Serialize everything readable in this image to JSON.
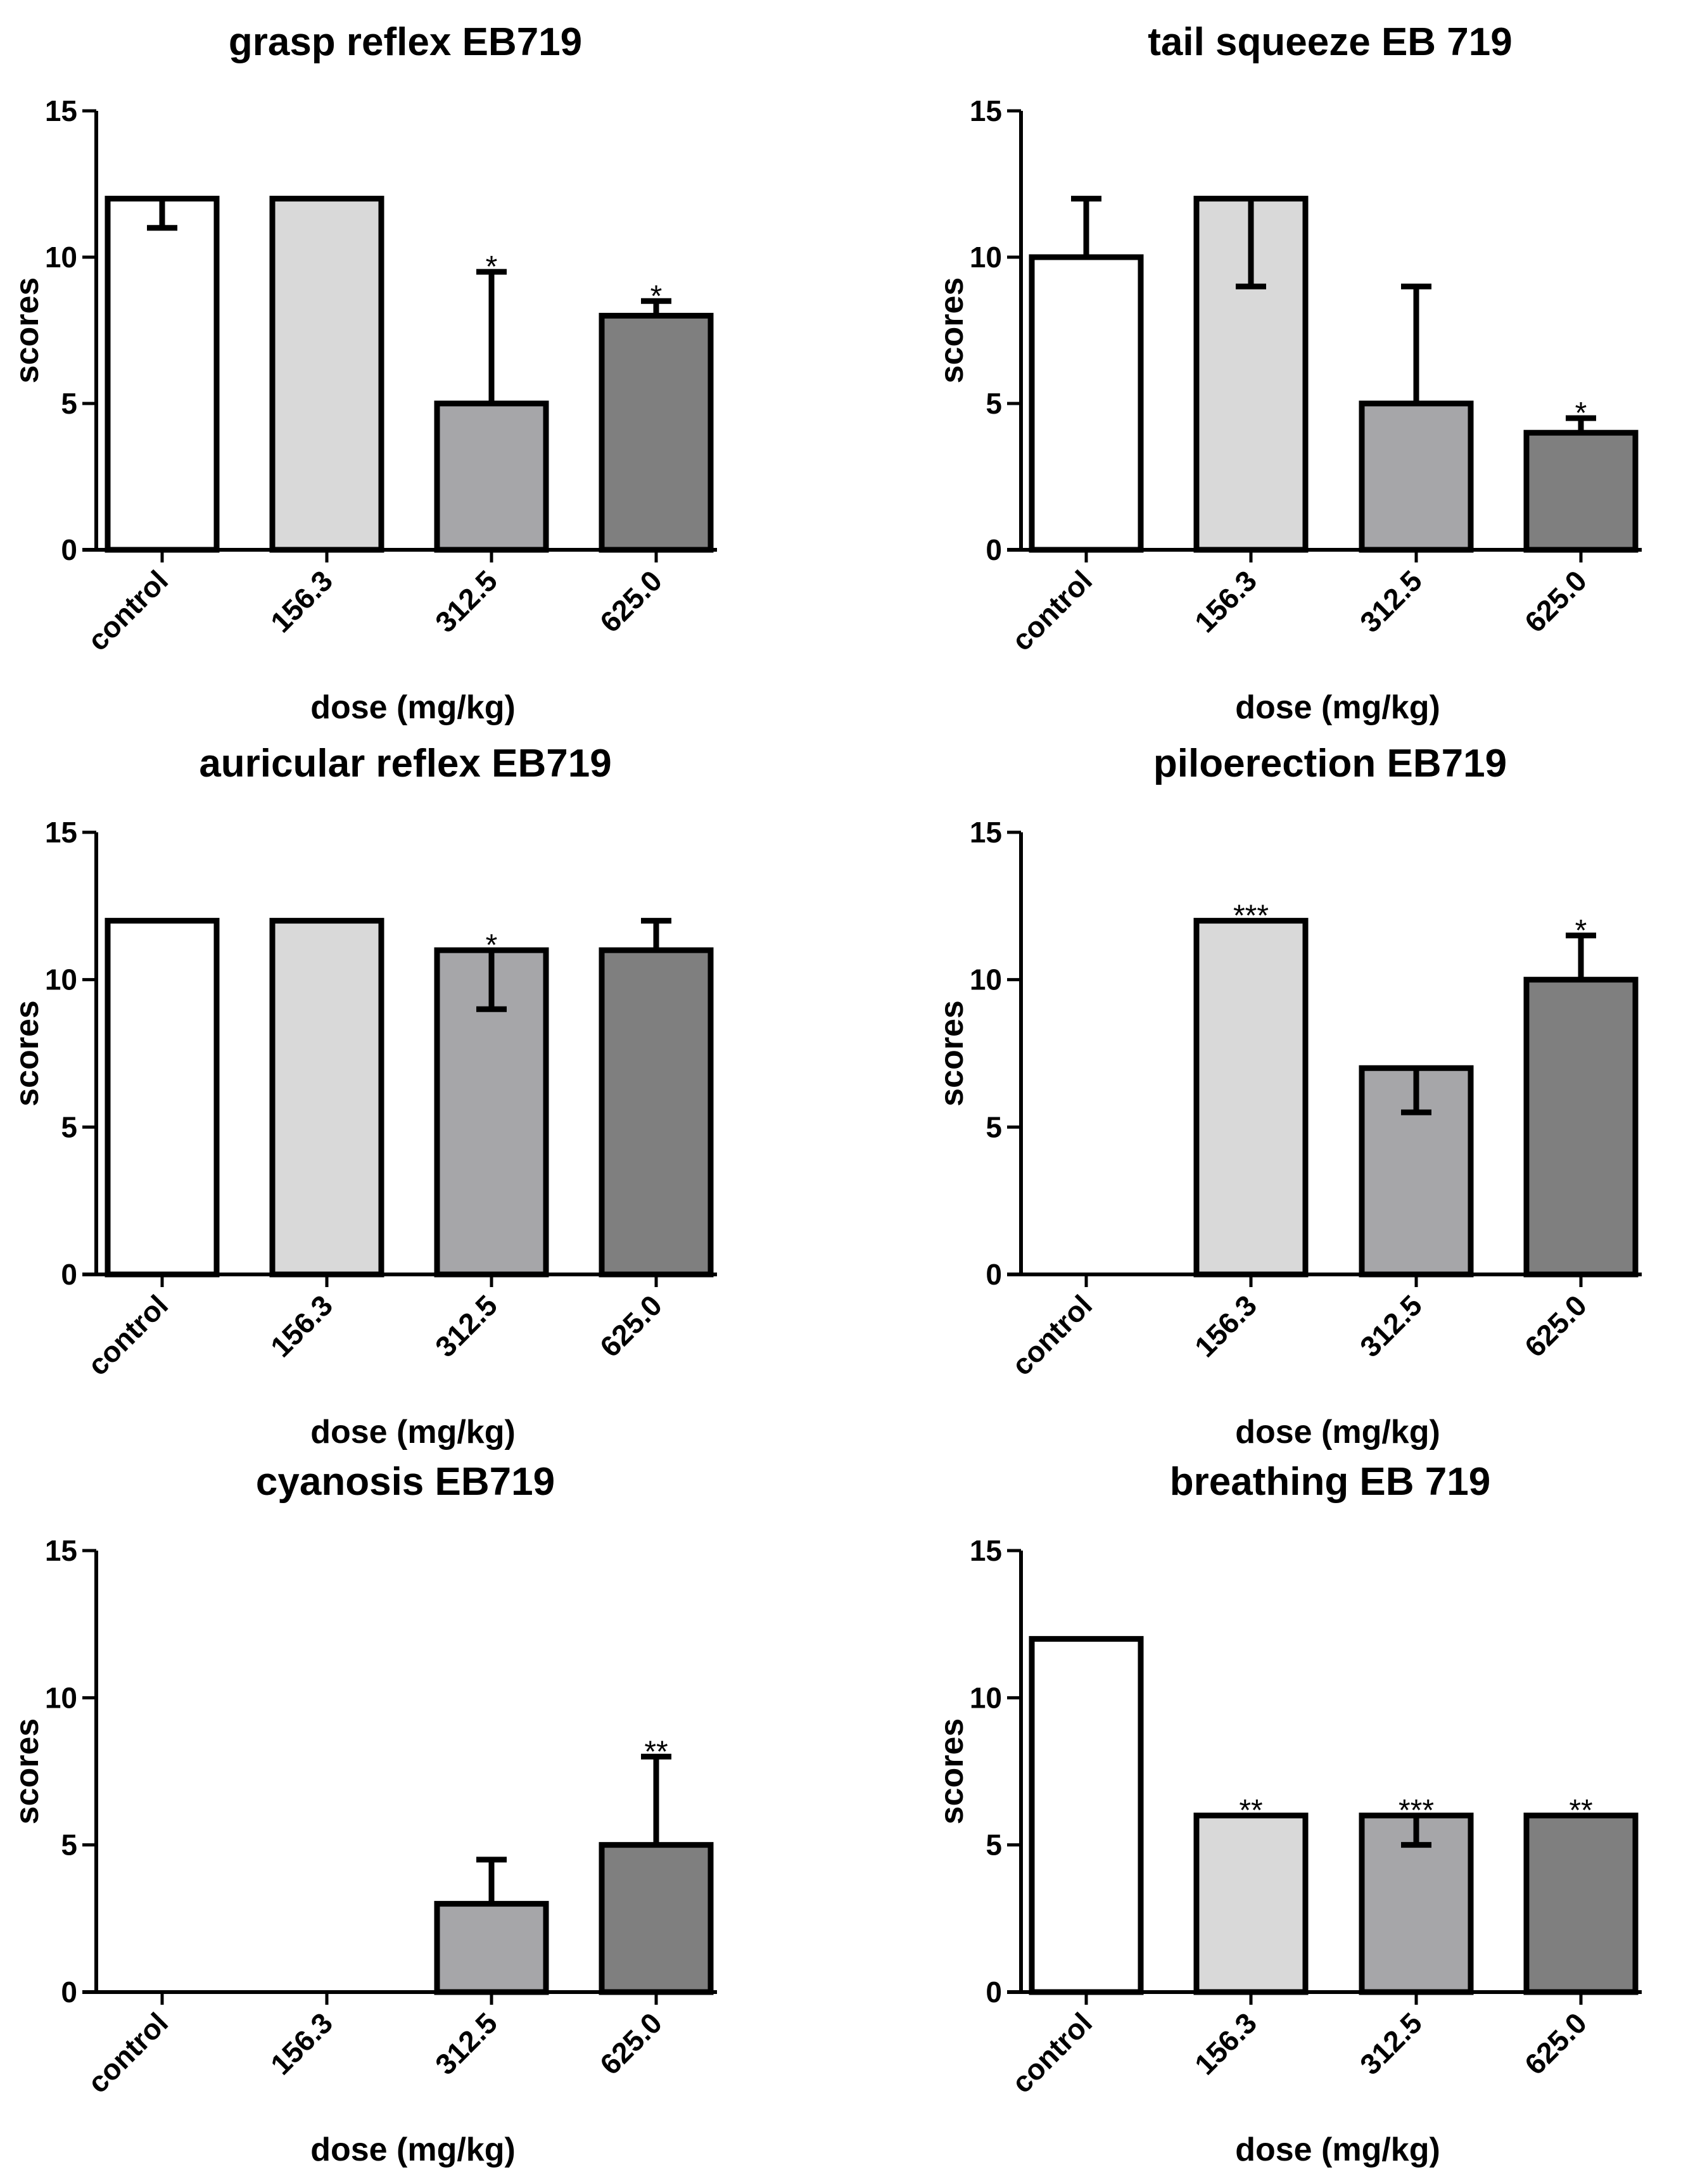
{
  "chart_data": [
    {
      "type": "bar",
      "title": "grasp reflex EB719",
      "xlabel": "dose (mg/kg)",
      "ylabel": "scores",
      "ylim": [
        0,
        15
      ],
      "yticks": [
        0,
        5,
        10,
        15
      ],
      "categories": [
        "control",
        "156.3",
        "312.5",
        "625.0"
      ],
      "values": [
        12,
        12,
        5,
        8
      ],
      "errors": [
        {
          "dir": "down",
          "value": 11
        },
        null,
        {
          "dir": "up",
          "value": 9.5
        },
        {
          "dir": "up",
          "value": 8.5
        }
      ],
      "significance": [
        "",
        "",
        "*",
        "*"
      ]
    },
    {
      "type": "bar",
      "title": "tail squeeze EB 719",
      "xlabel": "dose (mg/kg)",
      "ylabel": "scores",
      "ylim": [
        0,
        15
      ],
      "yticks": [
        0,
        5,
        10,
        15
      ],
      "categories": [
        "control",
        "156.3",
        "312.5",
        "625.0"
      ],
      "values": [
        10,
        12,
        5,
        4
      ],
      "errors": [
        {
          "dir": "up",
          "value": 12
        },
        {
          "dir": "down",
          "value": 9
        },
        {
          "dir": "up",
          "value": 9
        },
        {
          "dir": "up",
          "value": 4.5
        }
      ],
      "significance": [
        "",
        "",
        "",
        "*"
      ]
    },
    {
      "type": "bar",
      "title": "auricular reflex EB719",
      "xlabel": "dose (mg/kg)",
      "ylabel": "scores",
      "ylim": [
        0,
        15
      ],
      "yticks": [
        0,
        5,
        10,
        15
      ],
      "categories": [
        "control",
        "156.3",
        "312.5",
        "625.0"
      ],
      "values": [
        12,
        12,
        11,
        11
      ],
      "errors": [
        null,
        null,
        {
          "dir": "down",
          "value": 9
        },
        {
          "dir": "up",
          "value": 12
        }
      ],
      "significance": [
        "",
        "",
        "*",
        ""
      ]
    },
    {
      "type": "bar",
      "title": "piloerection EB719",
      "xlabel": "dose (mg/kg)",
      "ylabel": "scores",
      "ylim": [
        0,
        15
      ],
      "yticks": [
        0,
        5,
        10,
        15
      ],
      "categories": [
        "control",
        "156.3",
        "312.5",
        "625.0"
      ],
      "values": [
        0,
        12,
        7,
        10
      ],
      "errors": [
        null,
        null,
        {
          "dir": "down",
          "value": 5.5
        },
        {
          "dir": "up",
          "value": 11.5
        }
      ],
      "significance": [
        "",
        "***",
        "",
        "*"
      ]
    },
    {
      "type": "bar",
      "title": "cyanosis EB719",
      "xlabel": "dose (mg/kg)",
      "ylabel": "scores",
      "ylim": [
        0,
        15
      ],
      "yticks": [
        0,
        5,
        10,
        15
      ],
      "categories": [
        "control",
        "156.3",
        "312.5",
        "625.0"
      ],
      "values": [
        0,
        0,
        3,
        5
      ],
      "errors": [
        null,
        null,
        {
          "dir": "up",
          "value": 4.5
        },
        {
          "dir": "up",
          "value": 8
        }
      ],
      "significance": [
        "",
        "",
        "",
        "**"
      ]
    },
    {
      "type": "bar",
      "title": "breathing EB 719",
      "xlabel": "dose (mg/kg)",
      "ylabel": "scores",
      "ylim": [
        0,
        15
      ],
      "yticks": [
        0,
        5,
        10,
        15
      ],
      "categories": [
        "control",
        "156.3",
        "312.5",
        "625.0"
      ],
      "values": [
        12,
        6,
        6,
        6
      ],
      "errors": [
        null,
        null,
        {
          "dir": "down",
          "value": 5
        },
        null
      ],
      "significance": [
        "",
        "**",
        "***",
        "**"
      ]
    }
  ],
  "colors": {
    "bar_fills": [
      "#ffffff",
      "#d9d9d9",
      "#a6a6a9",
      "#7f7f7f"
    ],
    "stroke": "#000000"
  }
}
